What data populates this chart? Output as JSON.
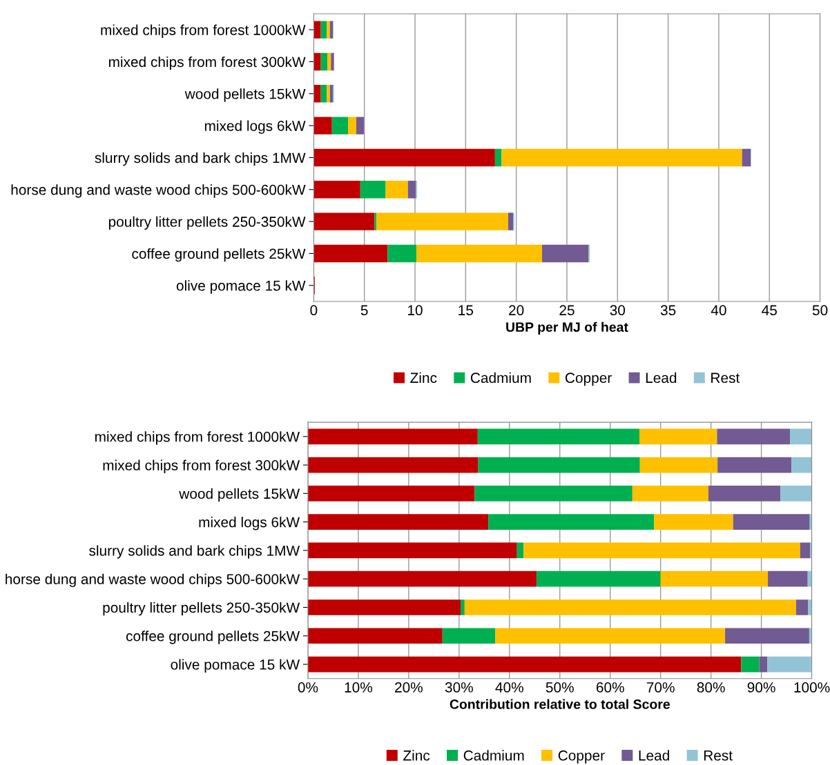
{
  "chart_data": [
    {
      "type": "bar",
      "orientation": "horizontal",
      "stacked": true,
      "xlabel": "UBP per MJ of heat",
      "grid": "x",
      "legend": "bottom",
      "categories": [
        "mixed chips from forest 1000kW",
        "mixed chips from forest 300kW",
        "wood pellets 15kW",
        "mixed logs 6kW",
        "slurry solids and bark chips 1MW",
        "horse dung and waste wood chips 500-600kW",
        "poultry litter pellets 250-350kW",
        "coffee ground pellets 25kW",
        "olive pomace 15 kW"
      ],
      "xlim": [
        0,
        50
      ],
      "xticks": [
        0,
        5,
        10,
        15,
        20,
        25,
        30,
        35,
        40,
        45,
        50
      ],
      "series": [
        {
          "name": "Zinc",
          "color": "#c00000",
          "values": [
            0.7,
            0.7,
            0.7,
            1.8,
            17.9,
            4.6,
            6.0,
            7.3,
            0.1
          ]
        },
        {
          "name": "Cadmium",
          "color": "#00b050",
          "values": [
            0.6,
            0.65,
            0.6,
            1.6,
            0.65,
            2.5,
            0.2,
            2.85,
            0
          ]
        },
        {
          "name": "Copper",
          "color": "#ffc000",
          "values": [
            0.3,
            0.35,
            0.3,
            0.8,
            23.75,
            2.2,
            13.0,
            12.4,
            0
          ]
        },
        {
          "name": "Lead",
          "color": "#725a93",
          "values": [
            0.3,
            0.3,
            0.3,
            0.75,
            0.85,
            0.8,
            0.5,
            4.6,
            0
          ]
        },
        {
          "name": "Rest",
          "color": "#92c4d6",
          "values": [
            0.05,
            null,
            0.1,
            null,
            0.05,
            0.1,
            0.1,
            0.1,
            0
          ]
        }
      ]
    },
    {
      "type": "bar",
      "orientation": "horizontal",
      "stacked": true,
      "xlabel": "Contribution relative to total Score",
      "grid": "x",
      "legend": "bottom",
      "categories": [
        "mixed chips from forest 1000kW",
        "mixed chips from forest 300kW",
        "wood pellets 15kW",
        "mixed logs 6kW",
        "slurry solids and bark chips 1MW",
        "horse dung and waste wood chips 500-600kW",
        "poultry litter pellets 250-350kW",
        "coffee ground pellets 25kW",
        "olive pomace 15 kW"
      ],
      "xlim": [
        0,
        100
      ],
      "xticks": [
        {
          "value": 0,
          "label": "0%"
        },
        {
          "value": 10,
          "label": "10%"
        },
        {
          "value": 20,
          "label": "20%"
        },
        {
          "value": 30,
          "label": "30%"
        },
        {
          "value": 40,
          "label": "40%"
        },
        {
          "value": 50,
          "label": "50%"
        },
        {
          "value": 60,
          "label": "60%"
        },
        {
          "value": 70,
          "label": "70%"
        },
        {
          "value": 80,
          "label": "80%"
        },
        {
          "value": 90,
          "label": "90%"
        },
        {
          "value": 100,
          "label": "100%"
        }
      ],
      "series": [
        {
          "name": "Zinc",
          "color": "#c00000",
          "values": [
            33.7,
            33.8,
            33.1,
            35.8,
            41.5,
            45.4,
            30.3,
            26.7,
            86.0
          ]
        },
        {
          "name": "Cadmium",
          "color": "#00b050",
          "values": [
            32.1,
            32.1,
            31.3,
            32.9,
            1.3,
            24.6,
            0.8,
            10.5,
            3.6
          ]
        },
        {
          "name": "Copper",
          "color": "#ffc000",
          "values": [
            15.4,
            15.4,
            15.1,
            15.7,
            54.9,
            21.3,
            65.8,
            45.6,
            null
          ]
        },
        {
          "name": "Lead",
          "color": "#725a93",
          "values": [
            14.5,
            14.7,
            14.3,
            15.2,
            2.0,
            7.9,
            2.4,
            16.7,
            1.6
          ]
        },
        {
          "name": "Rest",
          "color": "#92c4d6",
          "values": [
            4.3,
            4.0,
            6.2,
            0.4,
            0.3,
            0.8,
            0.7,
            0.5,
            8.7
          ]
        }
      ]
    }
  ]
}
